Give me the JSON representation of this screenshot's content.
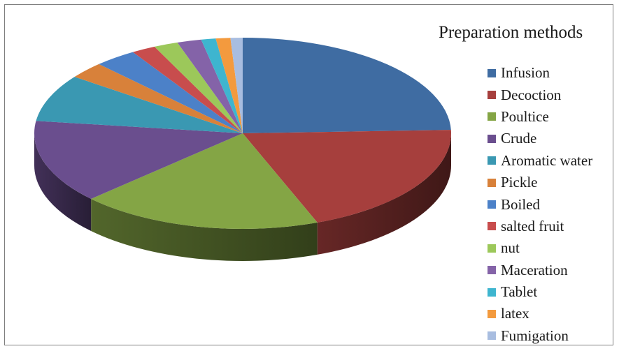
{
  "chart_data": {
    "type": "pie",
    "style": "3d-pie",
    "legend_title": "Preparation methods",
    "legend_position": "right",
    "series": [
      {
        "name": "Infusion",
        "value": 26.0,
        "color": "#3F6CA2"
      },
      {
        "name": "Decoction",
        "value": 21.0,
        "color": "#A63F3D"
      },
      {
        "name": "Poultice",
        "value": 20.0,
        "color": "#84A545"
      },
      {
        "name": "Crude",
        "value": 15.0,
        "color": "#6A4E8E"
      },
      {
        "name": "Aromatic water",
        "value": 8.5,
        "color": "#3A98B2"
      },
      {
        "name": "Pickle",
        "value": 3.0,
        "color": "#D8813A"
      },
      {
        "name": "Boiled",
        "value": 3.5,
        "color": "#4C81C8"
      },
      {
        "name": "salted fruit",
        "value": 2.0,
        "color": "#C84D4D"
      },
      {
        "name": "nut",
        "value": 2.0,
        "color": "#9CC85A"
      },
      {
        "name": "Maceration",
        "value": 2.0,
        "color": "#8463A8"
      },
      {
        "name": "Tablet",
        "value": 1.2,
        "color": "#3EB5CF"
      },
      {
        "name": "latex",
        "value": 1.2,
        "color": "#F39A3E"
      },
      {
        "name": "Fumigation",
        "value": 1.0,
        "color": "#A8BDE0"
      }
    ]
  }
}
